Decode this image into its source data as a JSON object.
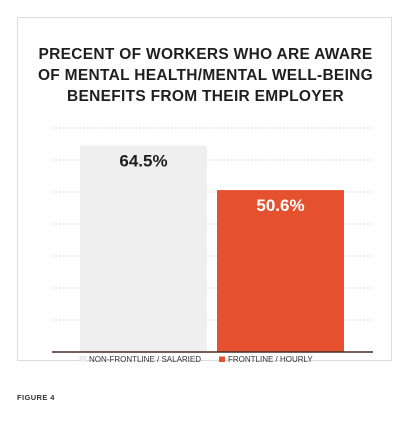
{
  "chart_data": {
    "type": "bar",
    "title": "PRECENT OF WORKERS WHO ARE AWARE\nOF MENTAL HEALTH/MENTAL WELL-BEING\nBENEFITS FROM THEIR EMPLOYER",
    "categories": [
      "NON-FRONTLINE / SALARIED",
      "FRONTLINE / HOURLY"
    ],
    "values": [
      64.5,
      50.6
    ],
    "value_labels": [
      "64.5%",
      "50.6%"
    ],
    "ylim": [
      0,
      70
    ],
    "grid": true,
    "legend_position": "bottom",
    "colors": [
      "#efefef",
      "#e5512f"
    ],
    "label_colors": [
      "#1f1f1f",
      "#ffffff"
    ]
  },
  "figure_label": "FIGURE 4"
}
